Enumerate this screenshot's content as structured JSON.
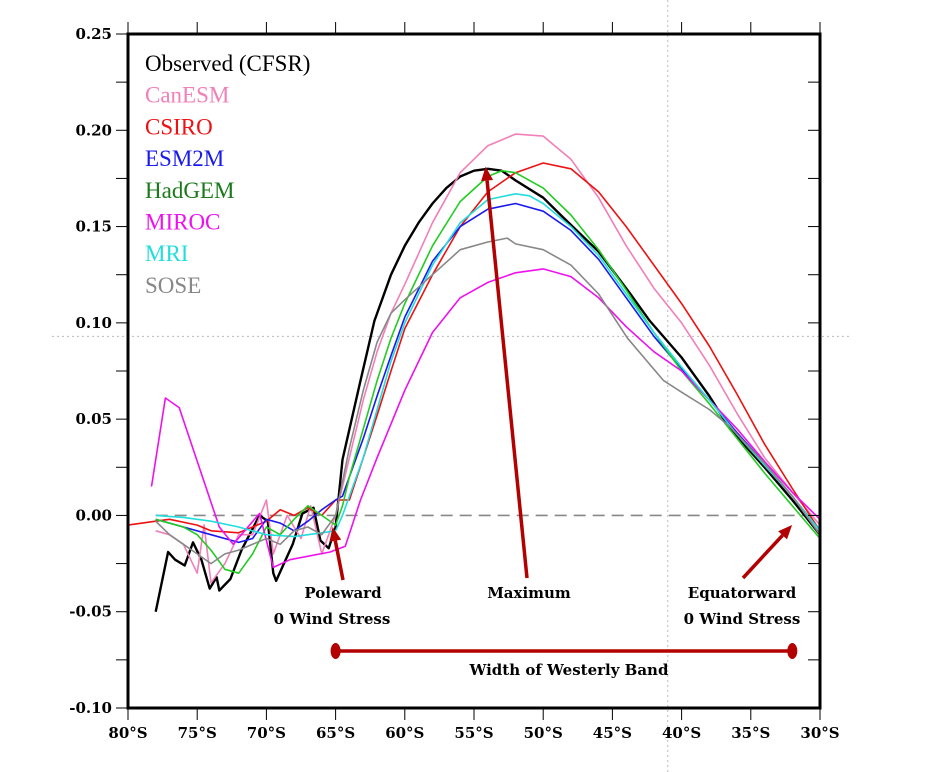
{
  "chart_data": {
    "type": "line",
    "title": "",
    "xlabel": "",
    "ylabel": "",
    "x_unit": "degrees latitude south",
    "xlim": [
      80,
      30
    ],
    "ylim": [
      -0.1,
      0.25
    ],
    "grid": false,
    "legend_placement": "top-left",
    "x_ticks": [
      80,
      75,
      70,
      65,
      60,
      55,
      50,
      45,
      40,
      35,
      30
    ],
    "x_tick_labels": [
      "80°S",
      "75°S",
      "70°S",
      "65°S",
      "60°S",
      "55°S",
      "50°S",
      "45°S",
      "40°S",
      "35°S",
      "30°S"
    ],
    "y_ticks": [
      0.25,
      0.2,
      0.15,
      0.1,
      0.05,
      0.0,
      -0.05,
      -0.1
    ],
    "y_tick_labels": [
      "0.25",
      "0.20",
      "0.15",
      "0.10",
      "0.05",
      "0.00",
      "-0.05",
      "-0.10"
    ],
    "zero_line": 0.0,
    "reference_lines": {
      "horizontal_value": 0.093,
      "vertical_latitude": 41
    },
    "series": [
      {
        "name": "Observed (CFSR)",
        "color": "#000000",
        "legend_color": "#000000",
        "width": 2.4,
        "x": [
          78,
          77.1,
          76.6,
          75.9,
          75.3,
          74.7,
          74.1,
          73.6,
          73.4,
          72.6,
          71.8,
          70.5,
          69.9,
          69.5,
          69.3,
          68.1,
          67.4,
          66.6,
          66.1,
          65.5,
          65,
          64.5,
          63.2,
          62.2,
          61,
          60,
          59,
          58,
          57,
          56,
          55,
          54,
          53,
          52,
          50,
          48.6,
          46,
          43.7,
          42.3,
          40,
          38,
          36.5,
          34,
          32,
          30
        ],
        "y": [
          -0.05,
          -0.019,
          -0.023,
          -0.026,
          -0.014,
          -0.023,
          -0.038,
          -0.032,
          -0.039,
          -0.033,
          -0.018,
          0.0,
          -0.003,
          -0.03,
          -0.034,
          -0.015,
          0.001,
          0.004,
          -0.013,
          -0.017,
          -0.006,
          0.029,
          0.07,
          0.101,
          0.125,
          0.14,
          0.152,
          0.162,
          0.17,
          0.176,
          0.179,
          0.18,
          0.179,
          0.174,
          0.165,
          0.155,
          0.137,
          0.115,
          0.101,
          0.082,
          0.062,
          0.045,
          0.025,
          0.008,
          -0.01
        ]
      },
      {
        "name": "CanESM",
        "color": "#f27fb8",
        "legend_color": "#f27fb8",
        "width": 1.6,
        "x": [
          78,
          77,
          76,
          75,
          74.5,
          74,
          73,
          72,
          71,
          70,
          69.5,
          68.5,
          67.5,
          66.8,
          66,
          65,
          64,
          63,
          62,
          61,
          60,
          58,
          56,
          54,
          52,
          50,
          48,
          46,
          44,
          42,
          40,
          38,
          36,
          34,
          32,
          30
        ],
        "y": [
          -0.008,
          -0.01,
          -0.015,
          -0.03,
          -0.005,
          -0.035,
          -0.025,
          -0.01,
          -0.01,
          0.008,
          -0.02,
          0.0,
          -0.012,
          0.005,
          -0.02,
          0.0,
          0.03,
          0.06,
          0.085,
          0.105,
          0.12,
          0.152,
          0.178,
          0.192,
          0.198,
          0.197,
          0.185,
          0.165,
          0.14,
          0.118,
          0.1,
          0.078,
          0.053,
          0.03,
          0.012,
          -0.005
        ]
      },
      {
        "name": "CSIRO",
        "color": "#ee1111",
        "legend_color": "#ee1111",
        "width": 1.6,
        "x": [
          80,
          78,
          77,
          75,
          74,
          72,
          70,
          69,
          68,
          67,
          66,
          65,
          64,
          63,
          62,
          61,
          60,
          58,
          56,
          54,
          52,
          50,
          48,
          46,
          44,
          42,
          40,
          38,
          36,
          34,
          32,
          30
        ],
        "y": [
          -0.005,
          -0.003,
          -0.002,
          -0.005,
          -0.008,
          -0.009,
          -0.003,
          0.003,
          0.0,
          0.004,
          0.0,
          0.008,
          0.008,
          0.03,
          0.052,
          0.075,
          0.097,
          0.125,
          0.15,
          0.168,
          0.178,
          0.183,
          0.18,
          0.168,
          0.15,
          0.13,
          0.11,
          0.088,
          0.063,
          0.037,
          0.014,
          -0.008
        ]
      },
      {
        "name": "ESM2M",
        "color": "#1a1aee",
        "legend_color": "#1a1aee",
        "width": 1.6,
        "x": [
          78,
          76,
          74,
          72,
          71,
          70,
          69,
          68,
          67,
          66,
          65,
          64.5,
          64,
          63,
          62,
          61,
          60,
          58,
          56,
          54,
          52,
          50,
          48,
          46,
          44,
          42,
          40,
          38,
          36,
          34,
          32,
          30
        ],
        "y": [
          -0.002,
          -0.006,
          -0.01,
          -0.014,
          -0.012,
          -0.002,
          -0.004,
          -0.008,
          -0.003,
          0.003,
          0.008,
          0.01,
          0.02,
          0.04,
          0.062,
          0.083,
          0.103,
          0.132,
          0.15,
          0.159,
          0.162,
          0.158,
          0.148,
          0.133,
          0.113,
          0.093,
          0.076,
          0.06,
          0.043,
          0.027,
          0.01,
          -0.008
        ]
      },
      {
        "name": "HadGEM",
        "color": "#22cc22",
        "legend_color": "#1a7a1a",
        "width": 1.6,
        "x": [
          78,
          76,
          75,
          74,
          73,
          72,
          71,
          70,
          69,
          68,
          67,
          66,
          65,
          64.5,
          64,
          63,
          62,
          61,
          60,
          58,
          56,
          54,
          53,
          52,
          50,
          48,
          46,
          44,
          42,
          40,
          38,
          36,
          34,
          32,
          30
        ],
        "y": [
          -0.002,
          -0.006,
          -0.01,
          -0.018,
          -0.028,
          -0.03,
          -0.02,
          -0.006,
          -0.01,
          -0.002,
          0.005,
          0.0,
          -0.005,
          0.005,
          0.02,
          0.045,
          0.07,
          0.092,
          0.11,
          0.14,
          0.163,
          0.176,
          0.179,
          0.178,
          0.17,
          0.156,
          0.138,
          0.117,
          0.095,
          0.075,
          0.058,
          0.04,
          0.022,
          0.005,
          -0.012
        ]
      },
      {
        "name": "MIROC",
        "color": "#ee11ee",
        "legend_color": "#ee11ee",
        "width": 1.6,
        "x": [
          78.3,
          77.3,
          76.3,
          73.4,
          72.4,
          70.5,
          69.5,
          68.3,
          65.4,
          64.3,
          63.2,
          62,
          60,
          58,
          56,
          54,
          52,
          50,
          48,
          46,
          44,
          42,
          40,
          38,
          36,
          34,
          32,
          30
        ],
        "y": [
          0.015,
          0.061,
          0.056,
          -0.006,
          -0.015,
          0.001,
          -0.027,
          -0.023,
          -0.019,
          -0.016,
          0.008,
          0.03,
          0.065,
          0.095,
          0.113,
          0.121,
          0.126,
          0.128,
          0.124,
          0.113,
          0.098,
          0.085,
          0.075,
          0.06,
          0.045,
          0.028,
          0.012,
          -0.002
        ]
      },
      {
        "name": "MRI",
        "color": "#22dddd",
        "legend_color": "#22dddd",
        "width": 1.6,
        "x": [
          78,
          76,
          74,
          72,
          70,
          68,
          66,
          65,
          64.5,
          64,
          63,
          62,
          61,
          60,
          58,
          56,
          54,
          52,
          51,
          50,
          48,
          46,
          44,
          42,
          40,
          38,
          36,
          34,
          32,
          30
        ],
        "y": [
          0.0,
          -0.001,
          -0.003,
          -0.006,
          -0.01,
          -0.011,
          -0.009,
          -0.008,
          0.0,
          0.01,
          0.03,
          0.055,
          0.08,
          0.1,
          0.13,
          0.152,
          0.164,
          0.167,
          0.166,
          0.162,
          0.15,
          0.135,
          0.115,
          0.095,
          0.077,
          0.06,
          0.042,
          0.026,
          0.01,
          -0.008
        ]
      },
      {
        "name": "SOSE",
        "color": "#888888",
        "legend_color": "#888888",
        "width": 1.6,
        "x": [
          78,
          77,
          76,
          75,
          74,
          73,
          72,
          70,
          69,
          68,
          67,
          66,
          65,
          64,
          63,
          62,
          61,
          60,
          58,
          56,
          54,
          52.6,
          52,
          50,
          48,
          46,
          43.9,
          41.3,
          40,
          38,
          36.5,
          34,
          32,
          30
        ],
        "y": [
          -0.003,
          -0.01,
          -0.015,
          -0.02,
          -0.025,
          -0.02,
          -0.018,
          -0.012,
          -0.015,
          -0.008,
          -0.006,
          -0.01,
          0.0,
          0.035,
          0.065,
          0.09,
          0.105,
          0.112,
          0.125,
          0.138,
          0.142,
          0.144,
          0.141,
          0.138,
          0.13,
          0.115,
          0.092,
          0.07,
          0.064,
          0.055,
          0.046,
          0.027,
          0.01,
          -0.01
        ]
      }
    ],
    "annotations": {
      "color": "#b30000",
      "poleward": {
        "line1": "Poleward",
        "line2": "0 Wind Stress",
        "latitude": 65
      },
      "maximum": {
        "label": "Maximum",
        "latitude": 53,
        "value": 0.178
      },
      "equatorward": {
        "line1": "Equatorward",
        "line2": "0 Wind Stress",
        "latitude": 31.8
      },
      "band": {
        "label": "Width of Westerly Band",
        "from": 65,
        "to": 32
      }
    }
  }
}
